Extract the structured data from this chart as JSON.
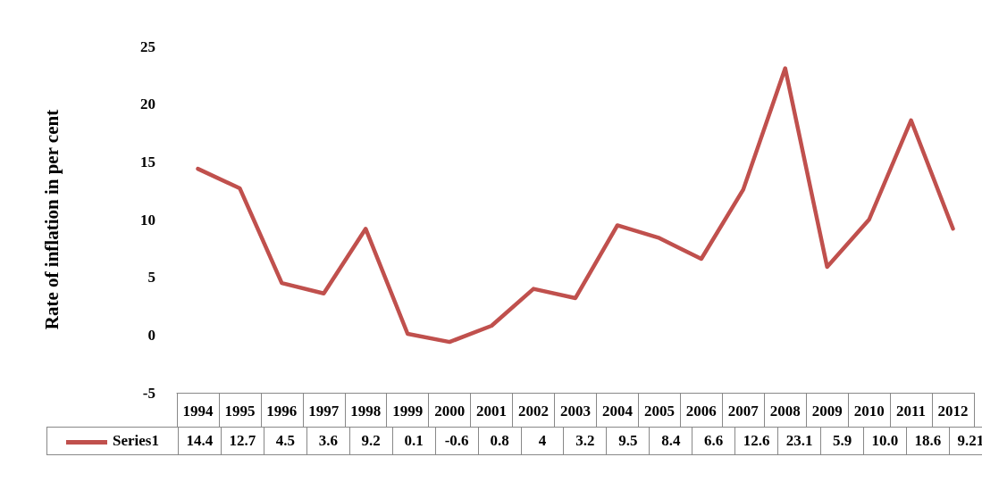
{
  "chart_data": {
    "type": "line",
    "ylabel": "Rate of inflation in per cent",
    "categories": [
      "1994",
      "1995",
      "1996",
      "1997",
      "1998",
      "1999",
      "2000",
      "2001",
      "2002",
      "2003",
      "2004",
      "2005",
      "2006",
      "2007",
      "2008",
      "2009",
      "2010",
      "2011",
      "2012"
    ],
    "series": [
      {
        "name": "Series1",
        "color": "#c0504d",
        "values": [
          14.4,
          12.7,
          4.5,
          3.6,
          9.2,
          0.1,
          -0.6,
          0.8,
          4,
          3.2,
          9.5,
          8.4,
          6.6,
          12.6,
          23.1,
          5.9,
          10.0,
          18.6,
          9.21
        ],
        "value_labels": [
          "14.4",
          "12.7",
          "4.5",
          "3.6",
          "9.2",
          "0.1",
          "-0.6",
          "0.8",
          "4",
          "3.2",
          "9.5",
          "8.4",
          "6.6",
          "12.6",
          "23.1",
          "5.9",
          "10.0",
          "18.6",
          "9.21"
        ]
      }
    ],
    "ylim": [
      -5,
      25
    ],
    "yticks": [
      -5,
      0,
      5,
      10,
      15,
      20,
      25
    ],
    "grid": false,
    "marker": "none",
    "line_style": "solid"
  }
}
